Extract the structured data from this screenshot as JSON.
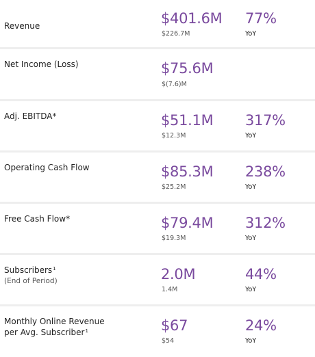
{
  "metrics": [
    {
      "label": "Revenue",
      "value": "$401.6M",
      "prior": "$226.7M",
      "growth": "77%",
      "growth_label": "YoY"
    },
    {
      "label": "Net Income (Loss)",
      "value": "$75.6M",
      "prior": "$(7.6)M"
    },
    {
      "label": "Adj. EBITDA*",
      "value": "$51.1M",
      "prior": "$12.3M",
      "growth": "317%",
      "growth_label": "YoY"
    },
    {
      "label": "Operating Cash Flow",
      "value": "$85.3M",
      "prior": "$25.2M",
      "growth": "238%",
      "growth_label": "YoY"
    },
    {
      "label": "Free Cash Flow*",
      "value": "$79.4M",
      "prior": "$19.3M",
      "growth": "312%",
      "growth_label": "YoY"
    },
    {
      "label": "Subscribers",
      "footnote": "1",
      "sublabel": "(End of Period)",
      "value": "2.0M",
      "prior": "1.4M",
      "growth": "44%",
      "growth_label": "YoY"
    },
    {
      "label": "Monthly Online Revenue",
      "label_line2": "per Avg. Subscriber",
      "footnote": "1",
      "value": "$67",
      "prior": "$54",
      "growth": "24%",
      "growth_label": "YoY"
    }
  ],
  "colors": {
    "accent": "#7a4a9e",
    "divider": "#eeeeee",
    "text": "#222222",
    "muted": "#555555"
  }
}
